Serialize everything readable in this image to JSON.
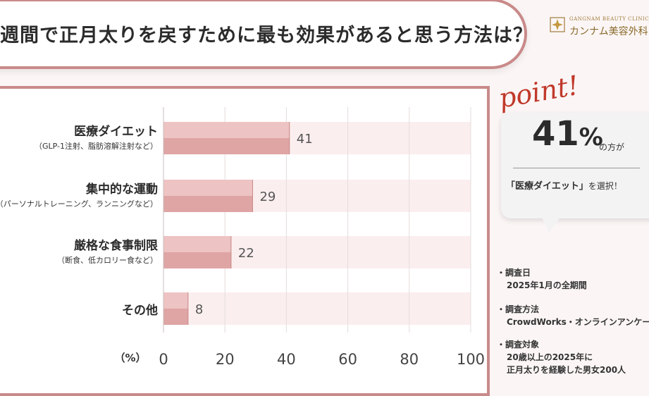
{
  "title": "週間で正月太りを戻すために最も効果があると思う方法は？",
  "logo": {
    "en": "GANGNAM BEAUTY CLINIC",
    "jp": "カンナム美容外科"
  },
  "chart_data": {
    "type": "bar",
    "orientation": "horizontal",
    "categories": [
      {
        "label": "医療ダイエット",
        "sublabel": "（GLP-1注射、脂肪溶解注射など）"
      },
      {
        "label": "集中的な運動",
        "sublabel": "（パーソナルトレーニング、ランニングなど）"
      },
      {
        "label": "厳格な食事制限",
        "sublabel": "（断食、低カロリー食など）"
      },
      {
        "label": "その他",
        "sublabel": ""
      }
    ],
    "values": [
      41,
      29,
      22,
      8
    ],
    "xlim": [
      0,
      100
    ],
    "xticks": [
      "0",
      "20",
      "40",
      "60",
      "80",
      "100"
    ],
    "xlabel": "（%）",
    "grid": true,
    "bar_color": "#e3aaaa",
    "track_color": "#fbeeee"
  },
  "callout": {
    "point": "point!",
    "percent_number": "41",
    "percent_sign": "%",
    "percent_suffix": "の方が",
    "choice": "「医療ダイエット」",
    "choice_suffix": "を選択！"
  },
  "survey": [
    {
      "head": "・調査日",
      "value": "2025年1月の全期間"
    },
    {
      "head": "・調査方法",
      "value": "CrowdWorks・オンラインアンケート"
    },
    {
      "head": "・調査対象",
      "value": "20歳以上の2025年に",
      "value2": "正月太りを経験した男女200人"
    }
  ]
}
